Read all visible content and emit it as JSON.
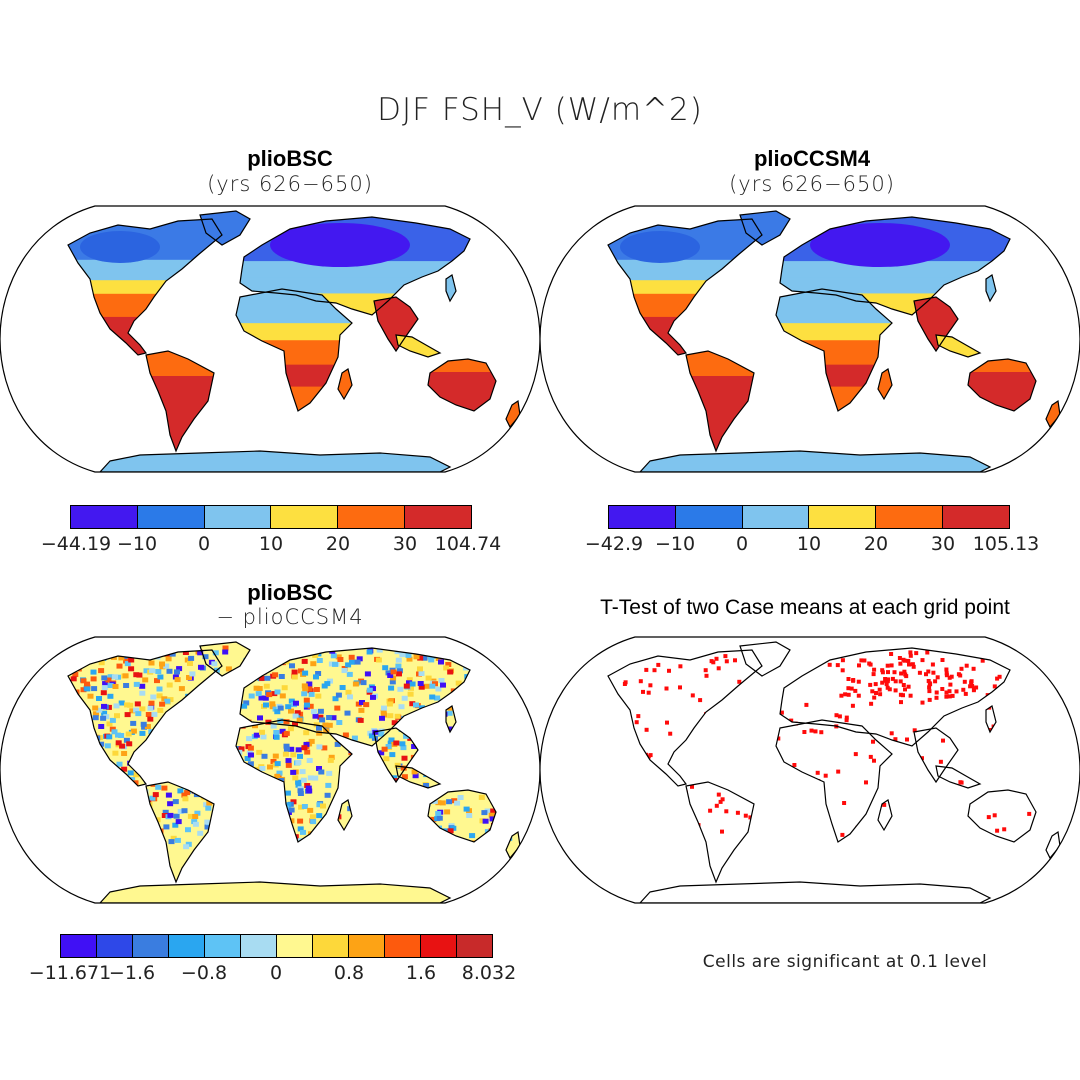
{
  "title": "DJF FSH_V (W/m^2)",
  "panels": [
    {
      "title": "plioBSC",
      "subtitle": "(yrs 626−650)",
      "colorbar": {
        "colors": [
          "#4318f0",
          "#2b7ae8",
          "#7fc4ee",
          "#fde040",
          "#fd6b10",
          "#d42a2a"
        ],
        "labels": [
          "−44.19",
          "−10",
          "0",
          "10",
          "20",
          "30",
          "104.74"
        ]
      }
    },
    {
      "title": "plioCCSM4",
      "subtitle": "(yrs 626−650)",
      "colorbar": {
        "colors": [
          "#4318f0",
          "#2b7ae8",
          "#7fc4ee",
          "#fde040",
          "#fd6b10",
          "#d42a2a"
        ],
        "labels": [
          "−42.9",
          "−10",
          "0",
          "10",
          "20",
          "30",
          "105.13"
        ]
      }
    },
    {
      "title": "plioBSC",
      "subtitle": "− plioCCSM4",
      "colorbar": {
        "colors": [
          "#4010f5",
          "#2e48e8",
          "#3a7de0",
          "#2aa6f0",
          "#5ec3f5",
          "#a8dcf2",
          "#fff890",
          "#fdd83a",
          "#fda315",
          "#fd5a0d",
          "#e81212",
          "#c82a2a"
        ],
        "labels": [
          "−11.671",
          "−1.6",
          "−0.8",
          "0",
          "0.8",
          "1.6",
          "8.032"
        ]
      }
    },
    {
      "title": "T-Test of two Case means at each grid point",
      "note": "Cells are significant at 0.1 level"
    }
  ]
}
